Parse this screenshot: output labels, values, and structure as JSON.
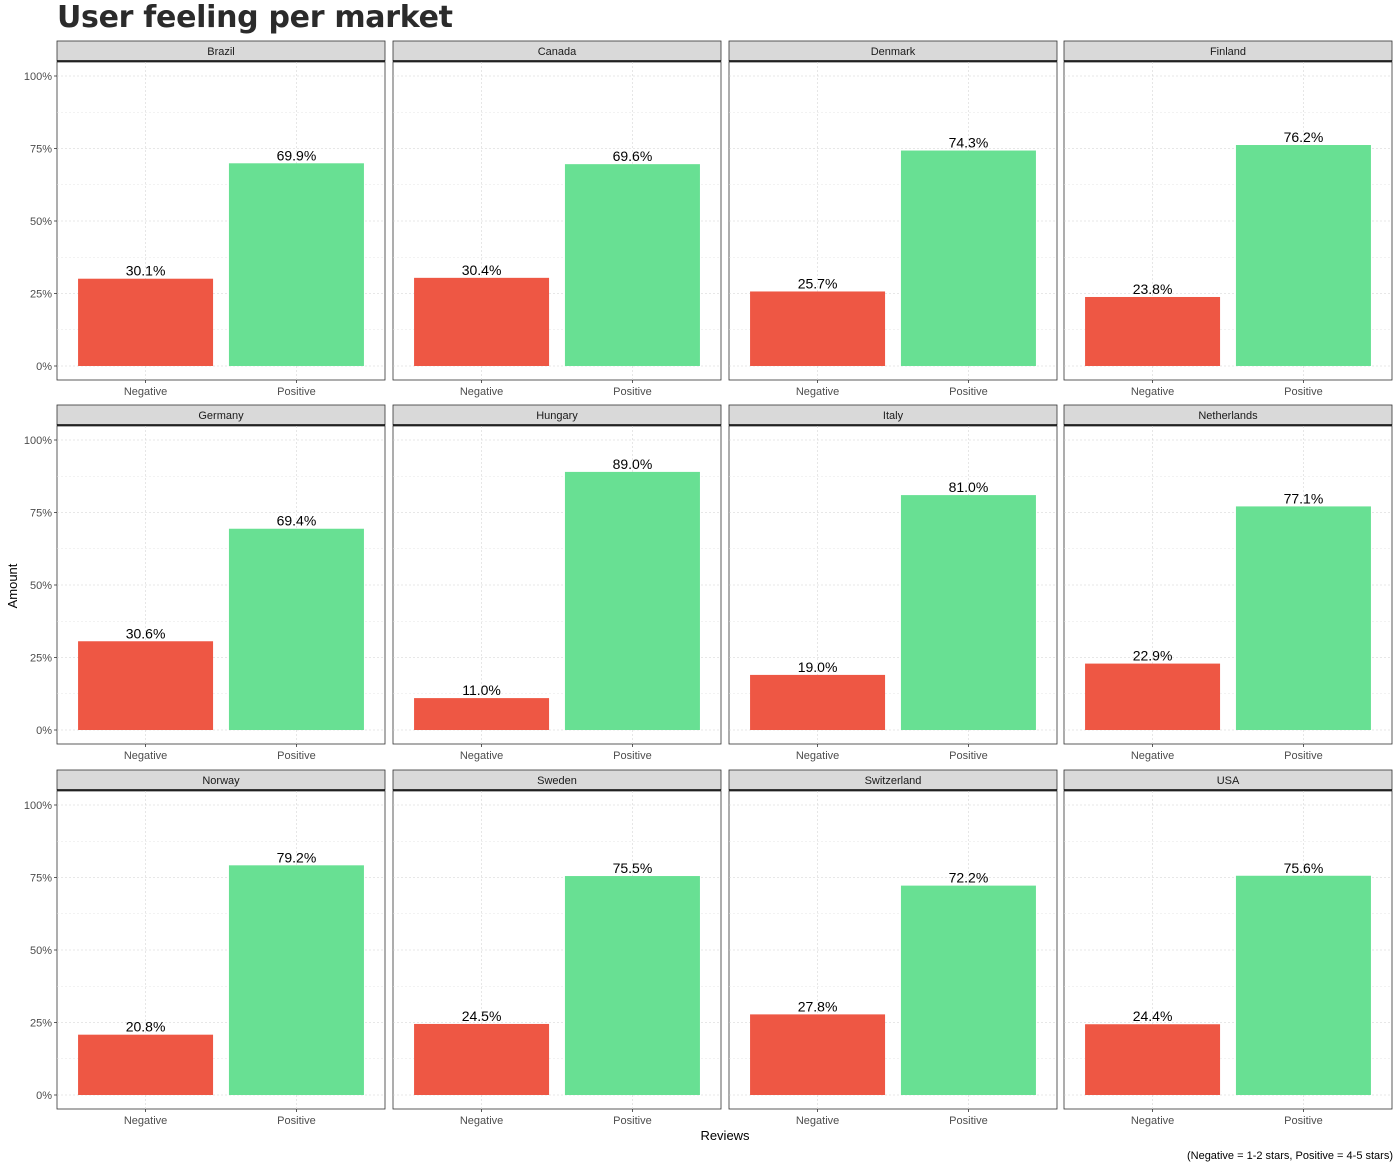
{
  "chart_data": {
    "type": "bar",
    "title": "User feeling per market",
    "xlabel": "Reviews",
    "ylabel": "Amount",
    "caption": "(Negative = 1-2 stars, Positive = 4-5 stars)",
    "categories": [
      "Negative",
      "Positive"
    ],
    "ylim": [
      0,
      100
    ],
    "yticks": [
      0,
      25,
      50,
      75,
      100
    ],
    "ytick_labels": [
      "0%",
      "25%",
      "50%",
      "75%",
      "100%"
    ],
    "grid": true,
    "colors": {
      "Negative": "#ee5744",
      "Positive": "#68e093"
    },
    "facets": [
      {
        "name": "Brazil",
        "values": [
          30.1,
          69.9
        ],
        "labels": [
          "30.1%",
          "69.9%"
        ]
      },
      {
        "name": "Canada",
        "values": [
          30.4,
          69.6
        ],
        "labels": [
          "30.4%",
          "69.6%"
        ]
      },
      {
        "name": "Denmark",
        "values": [
          25.7,
          74.3
        ],
        "labels": [
          "25.7%",
          "74.3%"
        ]
      },
      {
        "name": "Finland",
        "values": [
          23.8,
          76.2
        ],
        "labels": [
          "23.8%",
          "76.2%"
        ]
      },
      {
        "name": "Germany",
        "values": [
          30.6,
          69.4
        ],
        "labels": [
          "30.6%",
          "69.4%"
        ]
      },
      {
        "name": "Hungary",
        "values": [
          11.0,
          89.0
        ],
        "labels": [
          "11.0%",
          "89.0%"
        ]
      },
      {
        "name": "Italy",
        "values": [
          19.0,
          81.0
        ],
        "labels": [
          "19.0%",
          "81.0%"
        ]
      },
      {
        "name": "Netherlands",
        "values": [
          22.9,
          77.1
        ],
        "labels": [
          "22.9%",
          "77.1%"
        ]
      },
      {
        "name": "Norway",
        "values": [
          20.8,
          79.2
        ],
        "labels": [
          "20.8%",
          "79.2%"
        ]
      },
      {
        "name": "Sweden",
        "values": [
          24.5,
          75.5
        ],
        "labels": [
          "24.5%",
          "75.5%"
        ]
      },
      {
        "name": "Switzerland",
        "values": [
          27.8,
          72.2
        ],
        "labels": [
          "27.8%",
          "72.2%"
        ]
      },
      {
        "name": "USA",
        "values": [
          24.4,
          75.6
        ],
        "labels": [
          "24.4%",
          "75.6%"
        ]
      }
    ]
  }
}
